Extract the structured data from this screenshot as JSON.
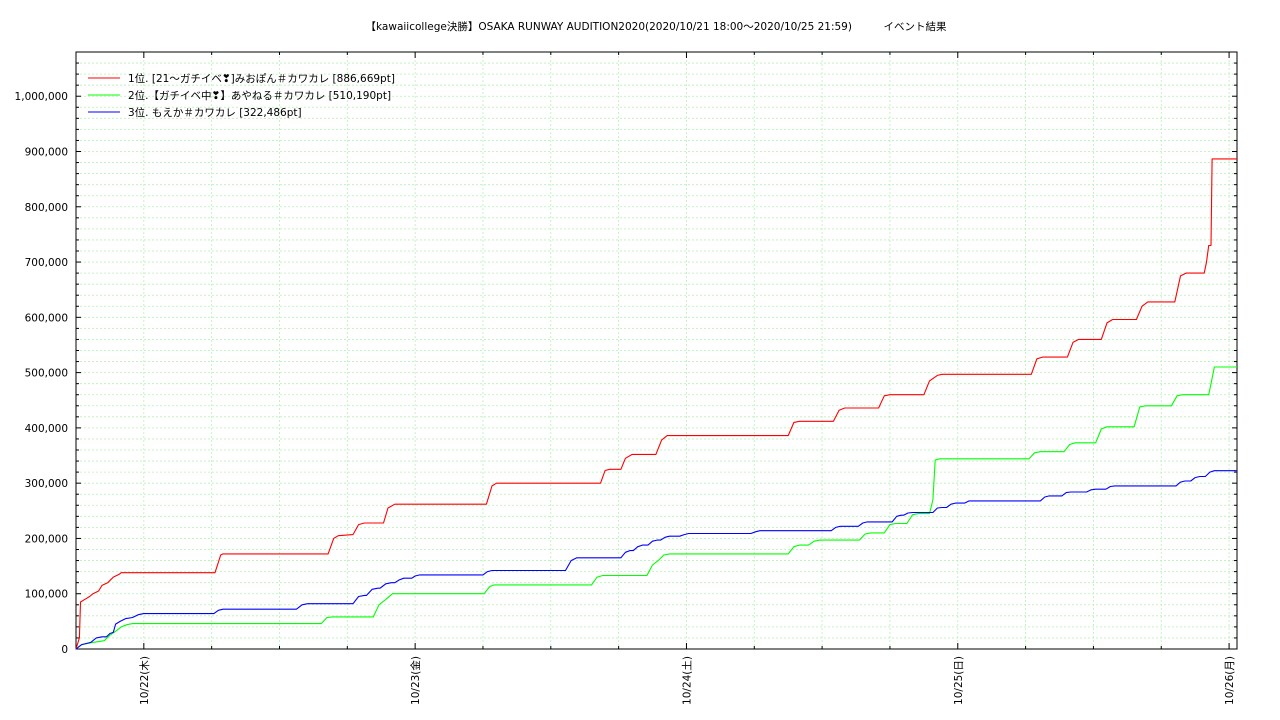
{
  "chart_data": {
    "type": "line",
    "title": "【kawaiicollege決勝】OSAKA RUNWAY AUDITION2020(2020/10/21 18:00〜2020/10/25 21:59)　　　イベント結果",
    "xlabel": "",
    "ylabel": "",
    "x_unit": "hours since 2020/10/21 18:00",
    "xlim": [
      0,
      102.7
    ],
    "ylim": [
      0,
      1080000
    ],
    "grid": true,
    "legend_position": "top-left",
    "x_ticks": [
      {
        "x": 6,
        "label": "10/22(木)"
      },
      {
        "x": 30,
        "label": "10/23(金)"
      },
      {
        "x": 54,
        "label": "10/24(土)"
      },
      {
        "x": 78,
        "label": "10/25(日)"
      },
      {
        "x": 102,
        "label": "10/26(月)"
      }
    ],
    "y_ticks": [
      {
        "y": 0,
        "label": "0"
      },
      {
        "y": 100000,
        "label": "100,000"
      },
      {
        "y": 200000,
        "label": "200,000"
      },
      {
        "y": 300000,
        "label": "300,000"
      },
      {
        "y": 400000,
        "label": "400,000"
      },
      {
        "y": 500000,
        "label": "500,000"
      },
      {
        "y": 600000,
        "label": "600,000"
      },
      {
        "y": 700000,
        "label": "700,000"
      },
      {
        "y": 800000,
        "label": "800,000"
      },
      {
        "y": 900000,
        "label": "900,000"
      },
      {
        "y": 1000000,
        "label": "1,000,000"
      }
    ],
    "series": [
      {
        "name": "1位. [21〜ガチイベ❣]みおぽん＃カワカレ [886,669pt]",
        "color": "#ff0000",
        "points": [
          [
            0,
            0
          ],
          [
            0.3,
            20000
          ],
          [
            0.4,
            85000
          ],
          [
            0.8,
            90000
          ],
          [
            1.2,
            95000
          ],
          [
            1.5,
            100000
          ],
          [
            2.0,
            105000
          ],
          [
            2.3,
            115000
          ],
          [
            2.8,
            120000
          ],
          [
            3.3,
            130000
          ],
          [
            3.8,
            135000
          ],
          [
            4.0,
            138000
          ],
          [
            12.3,
            138000
          ],
          [
            12.8,
            170000
          ],
          [
            13.0,
            172000
          ],
          [
            22.3,
            172000
          ],
          [
            22.8,
            200000
          ],
          [
            23.2,
            205000
          ],
          [
            24.5,
            207000
          ],
          [
            25.0,
            225000
          ],
          [
            25.5,
            228000
          ],
          [
            27.2,
            228000
          ],
          [
            27.6,
            255000
          ],
          [
            28.2,
            262000
          ],
          [
            36.3,
            262000
          ],
          [
            36.8,
            295000
          ],
          [
            37.2,
            300000
          ],
          [
            46.4,
            300000
          ],
          [
            46.8,
            323000
          ],
          [
            47.2,
            325000
          ],
          [
            48.2,
            325000
          ],
          [
            48.6,
            345000
          ],
          [
            49.2,
            352000
          ],
          [
            51.3,
            352000
          ],
          [
            51.8,
            378000
          ],
          [
            52.3,
            386000
          ],
          [
            63.0,
            386000
          ],
          [
            63.5,
            410000
          ],
          [
            64.0,
            412000
          ],
          [
            67.0,
            412000
          ],
          [
            67.5,
            432000
          ],
          [
            68.0,
            436000
          ],
          [
            71.0,
            436000
          ],
          [
            71.5,
            458000
          ],
          [
            72.0,
            460000
          ],
          [
            75.0,
            460000
          ],
          [
            75.5,
            485000
          ],
          [
            76.2,
            495000
          ],
          [
            76.6,
            497000
          ],
          [
            84.5,
            497000
          ],
          [
            85.0,
            525000
          ],
          [
            85.5,
            528000
          ],
          [
            87.7,
            528000
          ],
          [
            88.2,
            555000
          ],
          [
            88.7,
            560000
          ],
          [
            90.7,
            560000
          ],
          [
            91.2,
            590000
          ],
          [
            91.7,
            596000
          ],
          [
            93.8,
            596000
          ],
          [
            94.3,
            620000
          ],
          [
            94.8,
            628000
          ],
          [
            97.2,
            628000
          ],
          [
            97.7,
            675000
          ],
          [
            98.2,
            680000
          ],
          [
            99.8,
            680000
          ],
          [
            100.0,
            700000
          ],
          [
            100.2,
            730000
          ],
          [
            100.4,
            730000
          ],
          [
            100.5,
            886669
          ],
          [
            102.7,
            886669
          ]
        ]
      },
      {
        "name": "2位.【ガチイベ中❣】あやねる＃カワカレ [510,190pt]",
        "color": "#00ff00",
        "points": [
          [
            0,
            0
          ],
          [
            0.5,
            8000
          ],
          [
            1.5,
            12000
          ],
          [
            2.5,
            15000
          ],
          [
            3.0,
            25000
          ],
          [
            3.5,
            32000
          ],
          [
            4.0,
            40000
          ],
          [
            4.5,
            44000
          ],
          [
            5.0,
            46000
          ],
          [
            21.7,
            46000
          ],
          [
            22.2,
            57000
          ],
          [
            22.7,
            58000
          ],
          [
            26.3,
            58000
          ],
          [
            26.8,
            80000
          ],
          [
            27.3,
            88000
          ],
          [
            28.0,
            100000
          ],
          [
            36.1,
            100000
          ],
          [
            36.6,
            113000
          ],
          [
            37.0,
            116000
          ],
          [
            45.6,
            116000
          ],
          [
            46.1,
            130000
          ],
          [
            46.6,
            133000
          ],
          [
            50.5,
            133000
          ],
          [
            51.0,
            152000
          ],
          [
            51.5,
            160000
          ],
          [
            52.0,
            170000
          ],
          [
            52.5,
            172000
          ],
          [
            63.0,
            172000
          ],
          [
            63.5,
            185000
          ],
          [
            64.0,
            188000
          ],
          [
            64.8,
            188000
          ],
          [
            65.3,
            195000
          ],
          [
            65.8,
            197000
          ],
          [
            69.3,
            197000
          ],
          [
            69.8,
            208000
          ],
          [
            70.3,
            210000
          ],
          [
            71.5,
            210000
          ],
          [
            72.0,
            225000
          ],
          [
            72.5,
            227000
          ],
          [
            73.5,
            227000
          ],
          [
            74.0,
            243000
          ],
          [
            74.5,
            245000
          ],
          [
            75.5,
            245000
          ],
          [
            75.8,
            270000
          ],
          [
            76.0,
            342000
          ],
          [
            76.4,
            344000
          ],
          [
            84.3,
            344000
          ],
          [
            84.8,
            355000
          ],
          [
            85.3,
            357000
          ],
          [
            87.4,
            357000
          ],
          [
            87.9,
            370000
          ],
          [
            88.4,
            373000
          ],
          [
            90.2,
            373000
          ],
          [
            90.7,
            398000
          ],
          [
            91.2,
            402000
          ],
          [
            93.6,
            402000
          ],
          [
            94.1,
            438000
          ],
          [
            94.6,
            440000
          ],
          [
            96.9,
            440000
          ],
          [
            97.4,
            458000
          ],
          [
            97.9,
            460000
          ],
          [
            100.2,
            460000
          ],
          [
            100.4,
            480000
          ],
          [
            100.7,
            510190
          ],
          [
            102.7,
            510190
          ]
        ]
      },
      {
        "name": "3位. もえか＃カワカレ [322,486pt]",
        "color": "#0000ff",
        "points": [
          [
            0,
            0
          ],
          [
            0.5,
            8000
          ],
          [
            1.3,
            12000
          ],
          [
            1.8,
            20000
          ],
          [
            2.3,
            22000
          ],
          [
            2.7,
            22000
          ],
          [
            3.0,
            28000
          ],
          [
            3.3,
            30000
          ],
          [
            3.5,
            45000
          ],
          [
            3.9,
            50000
          ],
          [
            4.4,
            55000
          ],
          [
            5.0,
            57000
          ],
          [
            5.5,
            62000
          ],
          [
            6.0,
            64000
          ],
          [
            12.2,
            64000
          ],
          [
            12.6,
            70000
          ],
          [
            13.0,
            72000
          ],
          [
            19.5,
            72000
          ],
          [
            20.0,
            80000
          ],
          [
            20.5,
            82000
          ],
          [
            24.5,
            82000
          ],
          [
            25.0,
            95000
          ],
          [
            25.5,
            97000
          ],
          [
            25.7,
            97000
          ],
          [
            26.2,
            108000
          ],
          [
            26.7,
            110000
          ],
          [
            26.9,
            110000
          ],
          [
            27.4,
            118000
          ],
          [
            27.9,
            120000
          ],
          [
            28.2,
            120000
          ],
          [
            28.6,
            125000
          ],
          [
            29.0,
            128000
          ],
          [
            29.7,
            128000
          ],
          [
            30.0,
            132000
          ],
          [
            30.4,
            134000
          ],
          [
            36.0,
            134000
          ],
          [
            36.4,
            140000
          ],
          [
            36.8,
            142000
          ],
          [
            43.3,
            142000
          ],
          [
            43.8,
            160000
          ],
          [
            44.3,
            165000
          ],
          [
            48.2,
            165000
          ],
          [
            48.6,
            175000
          ],
          [
            49.0,
            178000
          ],
          [
            49.3,
            178000
          ],
          [
            49.7,
            185000
          ],
          [
            50.1,
            188000
          ],
          [
            50.6,
            188000
          ],
          [
            51.0,
            195000
          ],
          [
            51.4,
            197000
          ],
          [
            51.7,
            197000
          ],
          [
            52.1,
            202000
          ],
          [
            52.5,
            204000
          ],
          [
            53.4,
            204000
          ],
          [
            53.8,
            207000
          ],
          [
            54.2,
            209000
          ],
          [
            59.7,
            209000
          ],
          [
            60.1,
            212000
          ],
          [
            60.5,
            214000
          ],
          [
            66.8,
            214000
          ],
          [
            67.2,
            220000
          ],
          [
            67.6,
            222000
          ],
          [
            69.2,
            222000
          ],
          [
            69.6,
            228000
          ],
          [
            70.0,
            230000
          ],
          [
            72.2,
            230000
          ],
          [
            72.6,
            240000
          ],
          [
            73.0,
            242000
          ],
          [
            73.2,
            242000
          ],
          [
            73.6,
            246000
          ],
          [
            74.0,
            247000
          ],
          [
            75.8,
            247000
          ],
          [
            76.2,
            255000
          ],
          [
            76.6,
            256000
          ],
          [
            77.0,
            256000
          ],
          [
            77.4,
            262000
          ],
          [
            77.8,
            264000
          ],
          [
            78.6,
            264000
          ],
          [
            79.0,
            268000
          ],
          [
            79.4,
            268000
          ],
          [
            85.3,
            268000
          ],
          [
            85.7,
            275000
          ],
          [
            86.1,
            277000
          ],
          [
            87.2,
            277000
          ],
          [
            87.6,
            283000
          ],
          [
            88.0,
            284000
          ],
          [
            89.4,
            284000
          ],
          [
            89.8,
            288000
          ],
          [
            90.2,
            289000
          ],
          [
            91.1,
            289000
          ],
          [
            91.5,
            294000
          ],
          [
            91.9,
            295000
          ],
          [
            97.3,
            295000
          ],
          [
            97.7,
            302000
          ],
          [
            98.1,
            304000
          ],
          [
            98.6,
            304000
          ],
          [
            99.0,
            310000
          ],
          [
            99.4,
            312000
          ],
          [
            99.9,
            312000
          ],
          [
            100.3,
            320000
          ],
          [
            100.7,
            322486
          ],
          [
            102.7,
            322486
          ]
        ]
      }
    ]
  }
}
